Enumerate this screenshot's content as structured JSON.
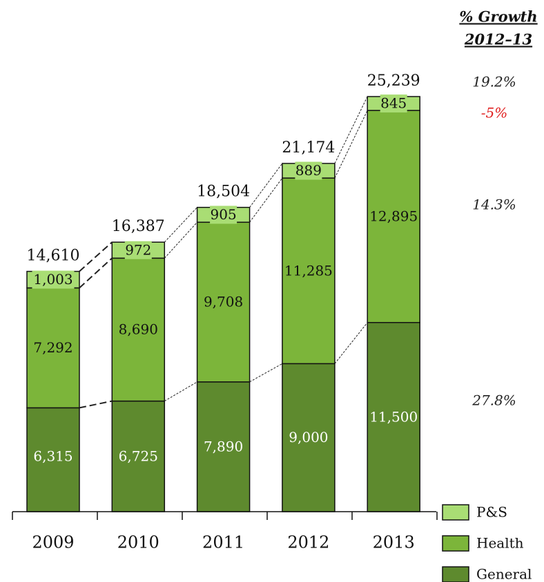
{
  "chart_data": {
    "type": "stacked_bar",
    "categories": [
      "2009",
      "2010",
      "2011",
      "2012",
      "2013"
    ],
    "series": [
      {
        "name": "General",
        "color": "#5e8a2e",
        "values": [
          6315,
          6725,
          7890,
          9000,
          11500
        ],
        "value_labels": [
          "6,315",
          "6,725",
          "7,890",
          "9,000",
          "11,500"
        ]
      },
      {
        "name": "Health",
        "color": "#7cb53a",
        "values": [
          7292,
          8690,
          9708,
          11285,
          12895
        ],
        "value_labels": [
          "7,292",
          "8,690",
          "9,708",
          "11,285",
          "12,895"
        ]
      },
      {
        "name": "P&S",
        "color": "#a9dd74",
        "values": [
          1003,
          972,
          905,
          889,
          845
        ],
        "value_labels": [
          "1,003",
          "972",
          "905",
          "889",
          "845"
        ]
      }
    ],
    "totals": [
      14610,
      16387,
      18504,
      21174,
      25239
    ],
    "total_labels": [
      "14,610",
      "16,387",
      "18,504",
      "21,174",
      "25,239"
    ],
    "growth": {
      "title": [
        "% Growth",
        "2012–13"
      ],
      "values": [
        19.2,
        -5,
        14.3,
        27.8
      ],
      "value_labels": [
        "19.2%",
        "-5%",
        "14.3%",
        "27.8%"
      ],
      "colors": [
        "#222222",
        "#e02020",
        "#222222",
        "#222222"
      ]
    },
    "legend": "bottom-right"
  }
}
